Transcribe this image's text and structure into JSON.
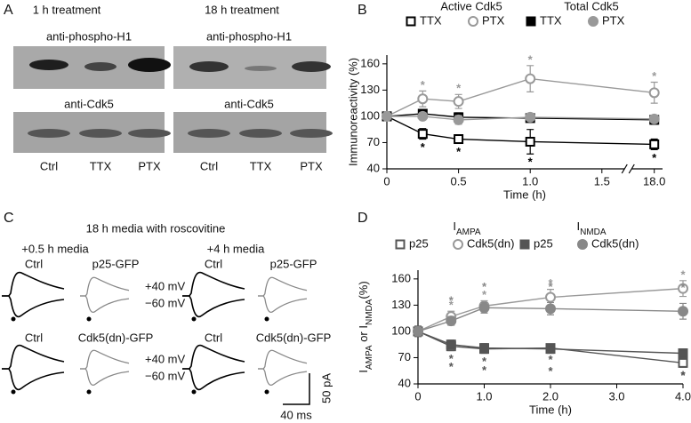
{
  "panel_labels": [
    "A",
    "B",
    "C",
    "D"
  ],
  "panel_a": {
    "conditions": [
      "1 h treatment",
      "18 h treatment"
    ],
    "antibodies": [
      "anti-phospho-H1",
      "anti-Cdk5"
    ],
    "lanes": [
      "Ctrl",
      "TTX",
      "PTX"
    ]
  },
  "panel_c": {
    "title": "18 h media with roscovitine",
    "timepoints": [
      "+0.5 h media",
      "+4 h media"
    ],
    "control": "Ctrl",
    "constructs": [
      "p25-GFP",
      "Cdk5(dn)-GFP"
    ],
    "holding": [
      "+40 mV",
      "−60 mV"
    ],
    "scale_current": "50 pA",
    "scale_time": "40 ms"
  },
  "chart_data": [
    {
      "type": "line",
      "xlabel": "Time (h)",
      "ylabel": "Immunoreactivity (%)",
      "x_break": true,
      "legend_groups": [
        "Active Cdk5",
        "Total Cdk5"
      ],
      "x": [
        0,
        0.25,
        0.5,
        1,
        18
      ],
      "xlim": [
        0,
        18
      ],
      "xticks": [
        0,
        0.5,
        {
          "value": 1,
          "label": "1.0"
        },
        1.5,
        {
          "value": 18,
          "label": "18.0"
        }
      ],
      "ylim": [
        40,
        170
      ],
      "yticks": [
        40,
        70,
        100,
        130,
        160
      ],
      "series": [
        {
          "name": "TTX",
          "color": "#000000",
          "marker": "square-open",
          "values": [
            100,
            80,
            74,
            71,
            68
          ],
          "errors": [
            3,
            6,
            5,
            14,
            6
          ],
          "sig_labels": [
            null,
            "*",
            "*",
            "*",
            "*"
          ]
        },
        {
          "name": "PTX",
          "color": "#999999",
          "marker": "circle-open",
          "values": [
            100,
            120,
            117,
            143,
            127
          ],
          "errors": [
            3,
            9,
            8,
            15,
            12
          ],
          "sig_labels": [
            null,
            "*",
            "*",
            "*",
            "*"
          ]
        },
        {
          "name": "TTX",
          "color": "#000000",
          "marker": "square-filled",
          "values": [
            100,
            103,
            99,
            98,
            96
          ],
          "errors": [
            3,
            5,
            5,
            4,
            5
          ]
        },
        {
          "name": "PTX",
          "color": "#999999",
          "marker": "circle-filled",
          "values": [
            100,
            100,
            96,
            99,
            97
          ],
          "errors": [
            3,
            4,
            5,
            4,
            4
          ]
        }
      ]
    },
    {
      "type": "line",
      "xlabel": "Time (h)",
      "ylabel": [
        {
          "text": "I"
        },
        {
          "text": "AMPA",
          "sub": true
        },
        {
          "text": " or "
        },
        {
          "text": "I"
        },
        {
          "text": "NMDA",
          "sub": true
        },
        {
          "text": "(%)"
        }
      ],
      "legend_groups": [
        [
          {
            "text": "I"
          },
          {
            "text": "AMPA",
            "sub": true
          }
        ],
        [
          {
            "text": "I"
          },
          {
            "text": "NMDA",
            "sub": true
          }
        ]
      ],
      "x": [
        0,
        0.5,
        1,
        2,
        4
      ],
      "xlim": [
        0,
        4
      ],
      "xticks": [
        0,
        {
          "value": 1,
          "label": "1.0"
        },
        {
          "value": 2,
          "label": "2.0"
        },
        {
          "value": 3,
          "label": "3.0"
        },
        {
          "value": 4,
          "label": "4.0"
        }
      ],
      "ylim": [
        40,
        170
      ],
      "yticks": [
        40,
        70,
        100,
        130,
        160
      ],
      "series": [
        {
          "name": "p25",
          "color": "#555555",
          "marker": "square-open",
          "values": [
            100,
            83,
            80,
            81,
            64
          ],
          "errors": [
            5,
            5,
            5,
            4,
            5
          ],
          "sig_labels": [
            null,
            "*",
            "*",
            "*",
            "*"
          ]
        },
        {
          "name": "Cdk5(dn)",
          "color": "#999999",
          "marker": "circle-open",
          "values": [
            100,
            117,
            129,
            139,
            149
          ],
          "errors": [
            5,
            6,
            6,
            9,
            9
          ],
          "sig_labels": [
            null,
            "*",
            "*",
            "*",
            "*"
          ]
        },
        {
          "name": "p25",
          "color": "#555555",
          "marker": "square-filled",
          "values": [
            100,
            85,
            81,
            80,
            75
          ],
          "errors": [
            6,
            5,
            5,
            5,
            5
          ],
          "sig_labels": [
            null,
            "*",
            "*",
            "*",
            "*"
          ]
        },
        {
          "name": "Cdk5(dn)",
          "color": "#888888",
          "marker": "circle-filled",
          "values": [
            100,
            112,
            127,
            126,
            123
          ],
          "errors": [
            5,
            5,
            6,
            7,
            9
          ],
          "sig_labels": [
            null,
            "*",
            "*",
            "*",
            "*"
          ]
        }
      ]
    }
  ]
}
